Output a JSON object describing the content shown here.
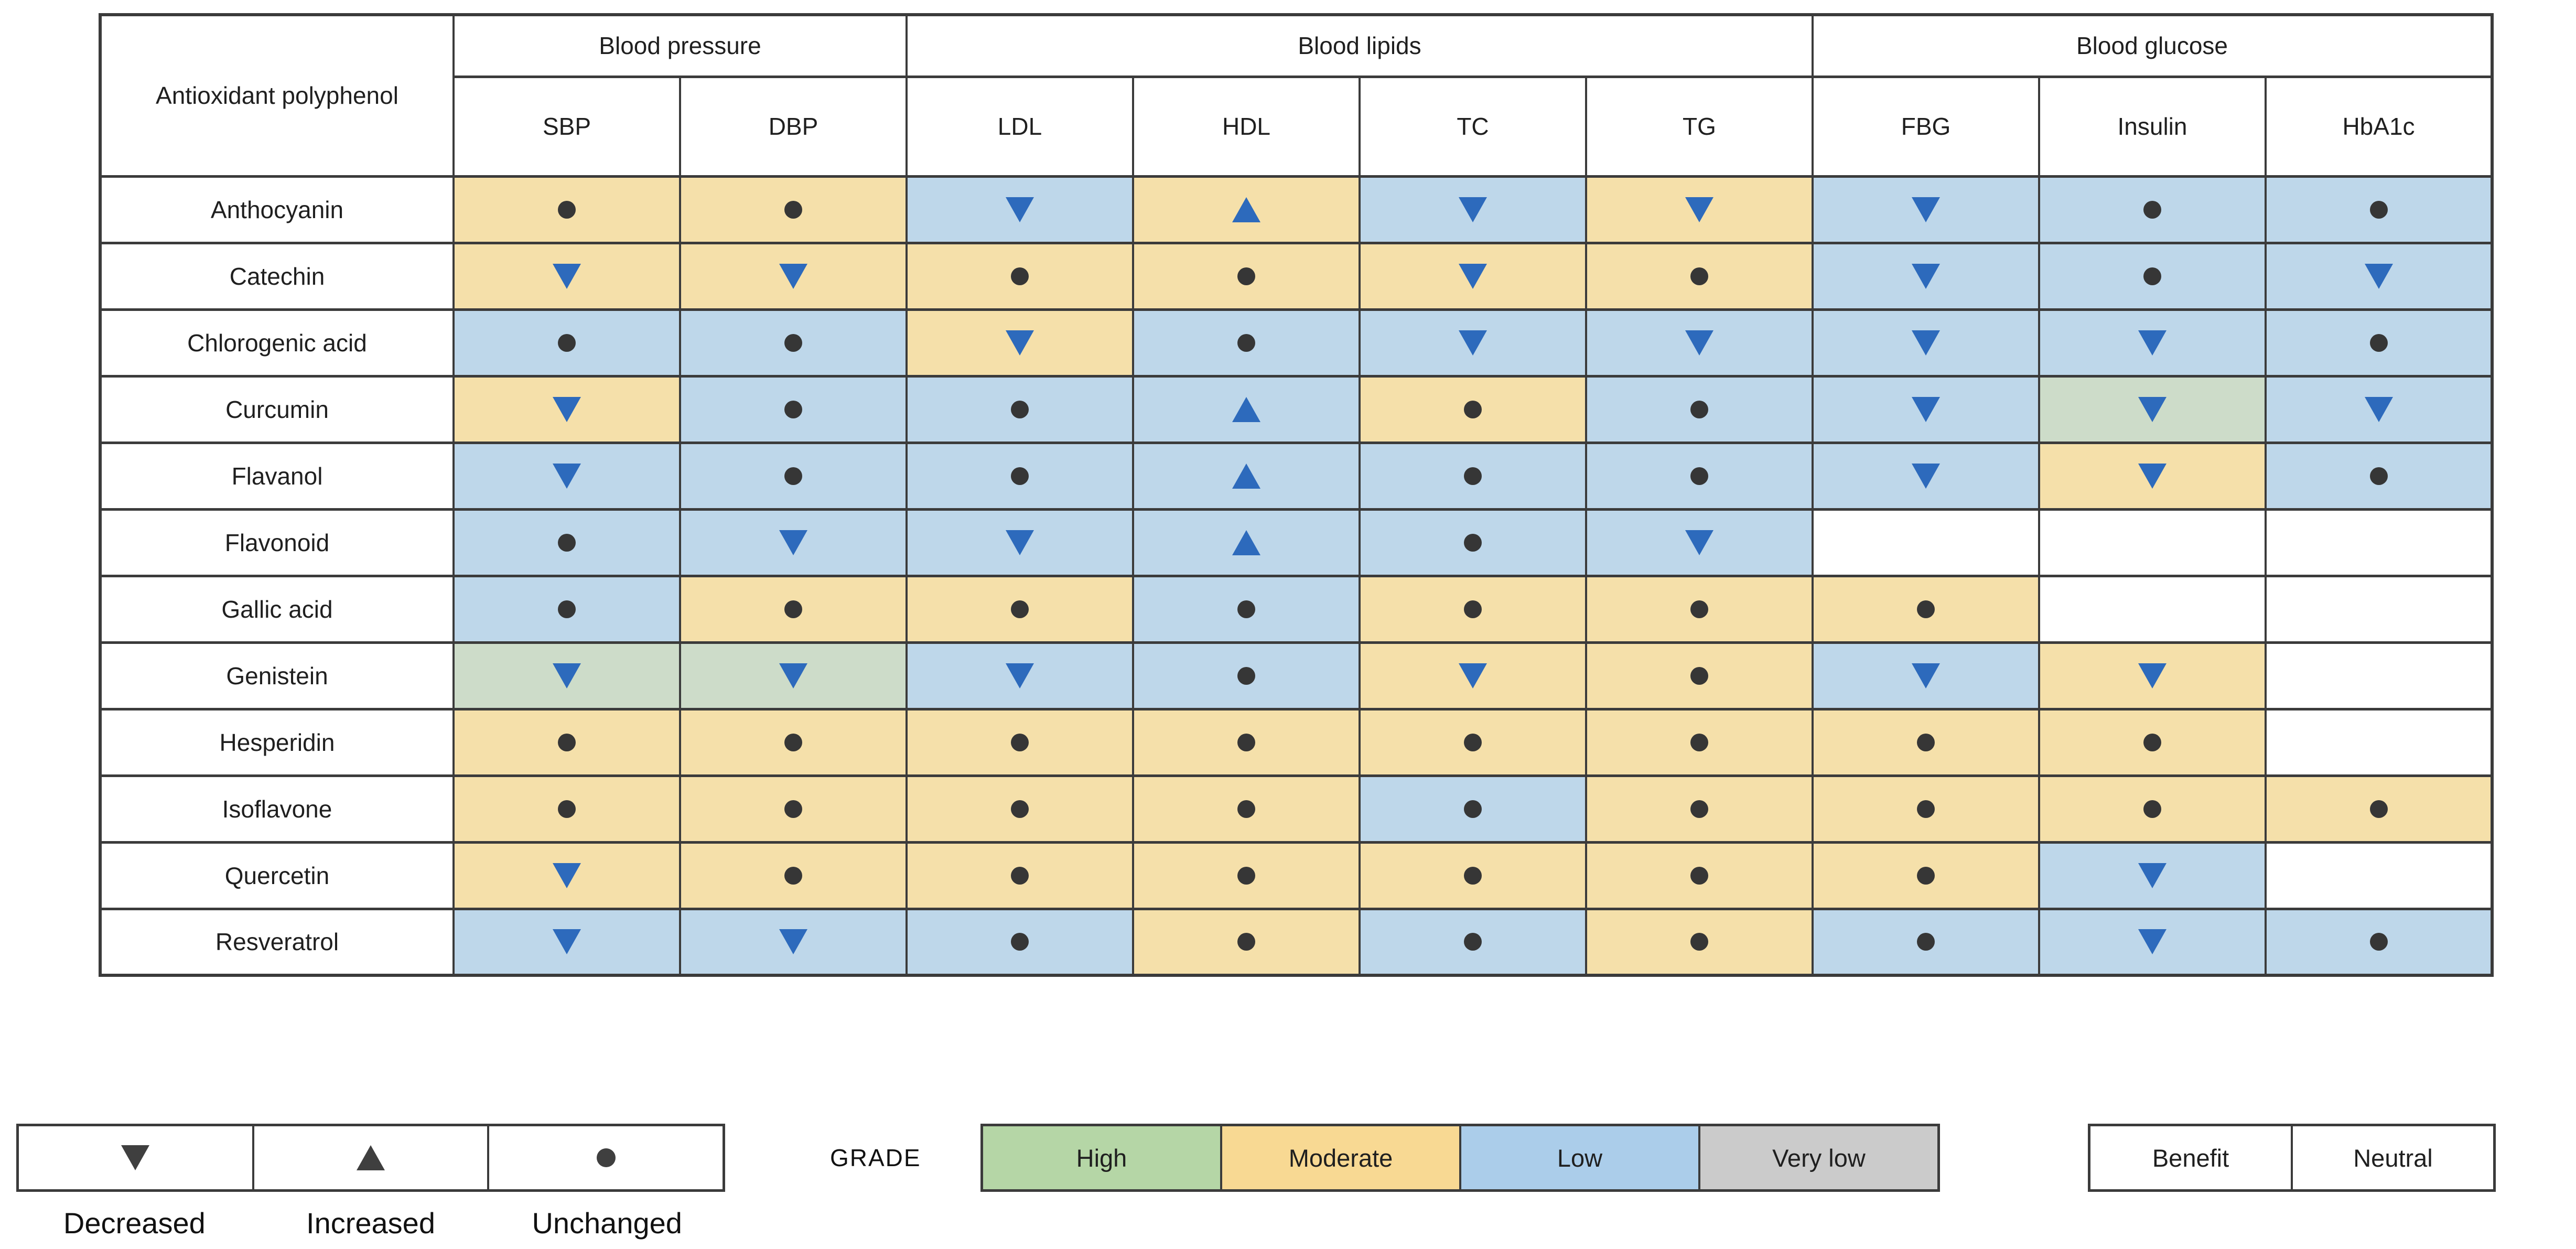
{
  "chart_data": {
    "type": "table",
    "title": "",
    "corner_label": "Antioxidant polyphenol",
    "column_groups": [
      {
        "label": "Blood pressure",
        "span": 2
      },
      {
        "label": "Blood lipids",
        "span": 4
      },
      {
        "label": "Blood glucose",
        "span": 3
      }
    ],
    "columns": [
      "SBP",
      "DBP",
      "LDL",
      "HDL",
      "TC",
      "TG",
      "FBG",
      "Insulin",
      "HbA1c"
    ],
    "cell_encoding": "grade:effect — grade is GRADE certainty (cell colour: high/moderate/low/none), effect is symbol (decreased/increased/unchanged/none)",
    "rows": [
      {
        "name": "Anthocyanin",
        "cells": [
          "moderate:unchanged",
          "moderate:unchanged",
          "low:decreased",
          "moderate:increased",
          "low:decreased",
          "moderate:decreased",
          "low:decreased",
          "low:unchanged",
          "low:unchanged"
        ]
      },
      {
        "name": "Catechin",
        "cells": [
          "moderate:decreased",
          "moderate:decreased",
          "moderate:unchanged",
          "moderate:unchanged",
          "moderate:decreased",
          "moderate:unchanged",
          "low:decreased",
          "low:unchanged",
          "low:decreased"
        ]
      },
      {
        "name": "Chlorogenic acid",
        "cells": [
          "low:unchanged",
          "low:unchanged",
          "moderate:decreased",
          "low:unchanged",
          "low:decreased",
          "low:decreased",
          "low:decreased",
          "low:decreased",
          "low:unchanged"
        ]
      },
      {
        "name": "Curcumin",
        "cells": [
          "moderate:decreased",
          "low:unchanged",
          "low:unchanged",
          "low:increased",
          "moderate:unchanged",
          "low:unchanged",
          "low:decreased",
          "high:decreased",
          "low:decreased"
        ]
      },
      {
        "name": "Flavanol",
        "cells": [
          "low:decreased",
          "low:unchanged",
          "low:unchanged",
          "low:increased",
          "low:unchanged",
          "low:unchanged",
          "low:decreased",
          "moderate:decreased",
          "low:unchanged"
        ]
      },
      {
        "name": "Flavonoid",
        "cells": [
          "low:unchanged",
          "low:decreased",
          "low:decreased",
          "low:increased",
          "low:unchanged",
          "low:decreased",
          "none:none",
          "none:none",
          "none:none"
        ]
      },
      {
        "name": "Gallic acid",
        "cells": [
          "low:unchanged",
          "moderate:unchanged",
          "moderate:unchanged",
          "low:unchanged",
          "moderate:unchanged",
          "moderate:unchanged",
          "moderate:unchanged",
          "none:none",
          "none:none"
        ]
      },
      {
        "name": "Genistein",
        "cells": [
          "high:decreased",
          "high:decreased",
          "low:decreased",
          "low:unchanged",
          "moderate:decreased",
          "moderate:unchanged",
          "low:decreased",
          "moderate:decreased",
          "none:none"
        ]
      },
      {
        "name": "Hesperidin",
        "cells": [
          "moderate:unchanged",
          "moderate:unchanged",
          "moderate:unchanged",
          "moderate:unchanged",
          "moderate:unchanged",
          "moderate:unchanged",
          "moderate:unchanged",
          "moderate:unchanged",
          "none:none"
        ]
      },
      {
        "name": "Isoflavone",
        "cells": [
          "moderate:unchanged",
          "moderate:unchanged",
          "moderate:unchanged",
          "moderate:unchanged",
          "low:unchanged",
          "moderate:unchanged",
          "moderate:unchanged",
          "moderate:unchanged",
          "moderate:unchanged"
        ]
      },
      {
        "name": "Quercetin",
        "cells": [
          "moderate:decreased",
          "moderate:unchanged",
          "moderate:unchanged",
          "moderate:unchanged",
          "moderate:unchanged",
          "moderate:unchanged",
          "moderate:unchanged",
          "low:decreased",
          "none:none"
        ]
      },
      {
        "name": "Resveratrol",
        "cells": [
          "low:decreased",
          "low:decreased",
          "low:unchanged",
          "moderate:unchanged",
          "low:unchanged",
          "moderate:unchanged",
          "low:unchanged",
          "low:decreased",
          "low:unchanged"
        ]
      }
    ]
  },
  "legend": {
    "symbols": [
      {
        "effect": "decreased",
        "label": "Decreased"
      },
      {
        "effect": "increased",
        "label": "Increased"
      },
      {
        "effect": "unchanged",
        "label": "Unchanged"
      }
    ],
    "grade": {
      "label": "GRADE",
      "items": [
        {
          "label": "High",
          "grade": "high"
        },
        {
          "label": "Moderate",
          "grade": "moderate"
        },
        {
          "label": "Low",
          "grade": "low"
        },
        {
          "label": "Very low",
          "grade": "very_low"
        }
      ]
    },
    "outcome": [
      {
        "label": "Benefit",
        "style": "benefit"
      },
      {
        "label": "Neutral",
        "style": "neutral"
      }
    ]
  },
  "colors": {
    "high": "#CDDCC9",
    "moderate": "#F5E0AA",
    "low": "#BED7EA",
    "very_low": "#CBCBCB",
    "legend_high": "#B5D6A6",
    "legend_moderate": "#F8D993",
    "legend_low": "#ABCDEA",
    "benefit_text": "#2B66C2",
    "symbol_benefit": "#2D6ABC",
    "symbol_neutral": "#363636",
    "border": "#3B3B3B"
  }
}
